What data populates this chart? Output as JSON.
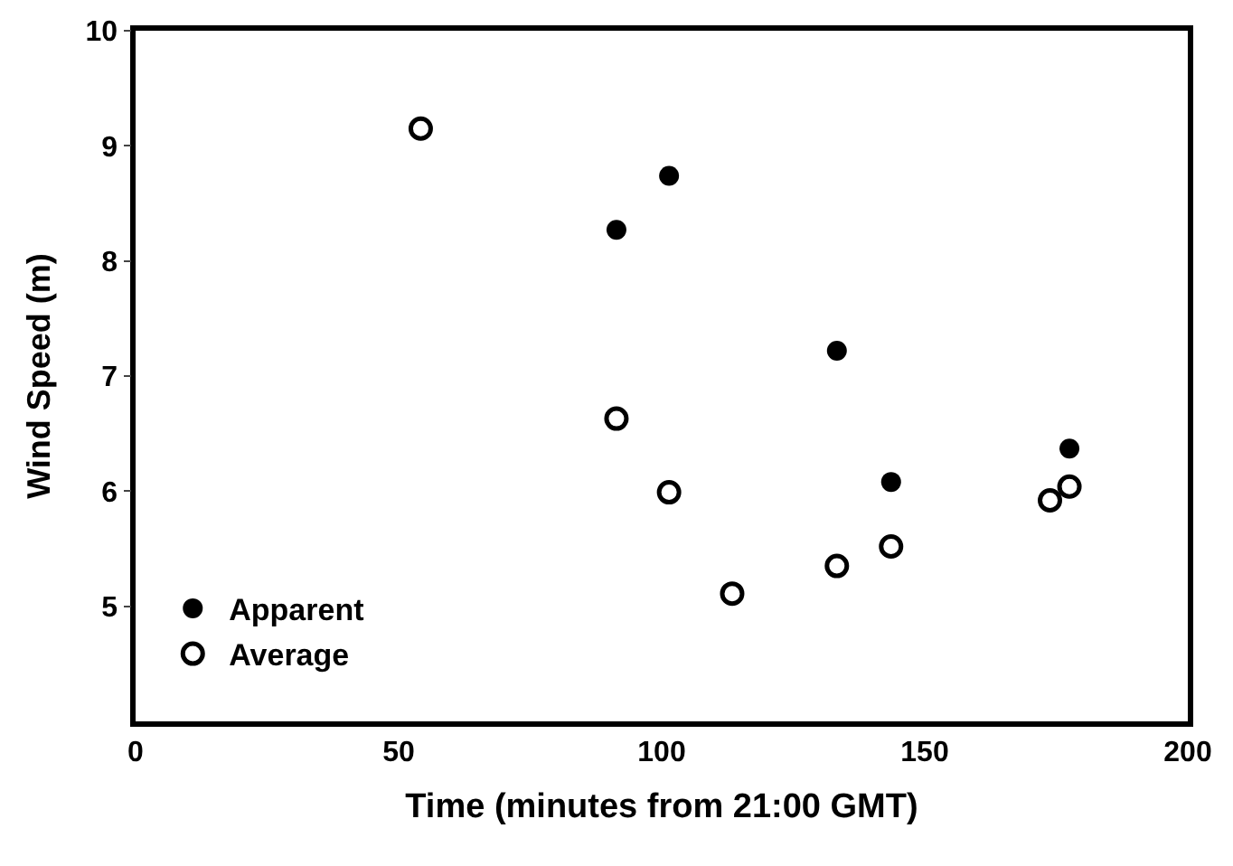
{
  "chart_data": {
    "type": "scatter",
    "xlabel": "Time (minutes from 21:00 GMT)",
    "ylabel": "Wind Speed (m)",
    "xlim": [
      0,
      200
    ],
    "xticks": [
      0,
      50,
      100,
      150,
      200
    ],
    "ylim": [
      4,
      10
    ],
    "yticks": [
      5,
      6,
      7,
      8,
      9,
      10
    ],
    "legend": "bottom left",
    "series": [
      {
        "name": "Apparent",
        "color": "#000000",
        "marker": "circle",
        "x": [
          91.4,
          101.4,
          133.3,
          143.6,
          177.5
        ],
        "values": [
          8.27,
          8.74,
          7.22,
          6.08,
          6.37
        ]
      },
      {
        "name": "Average",
        "color": "#000000",
        "marker": "circle-open",
        "x": [
          54.2,
          91.4,
          101.4,
          113.4,
          133.3,
          143.6,
          173.8,
          177.5
        ],
        "values": [
          9.15,
          6.63,
          5.99,
          5.11,
          5.35,
          5.52,
          5.92,
          6.04
        ]
      }
    ]
  }
}
